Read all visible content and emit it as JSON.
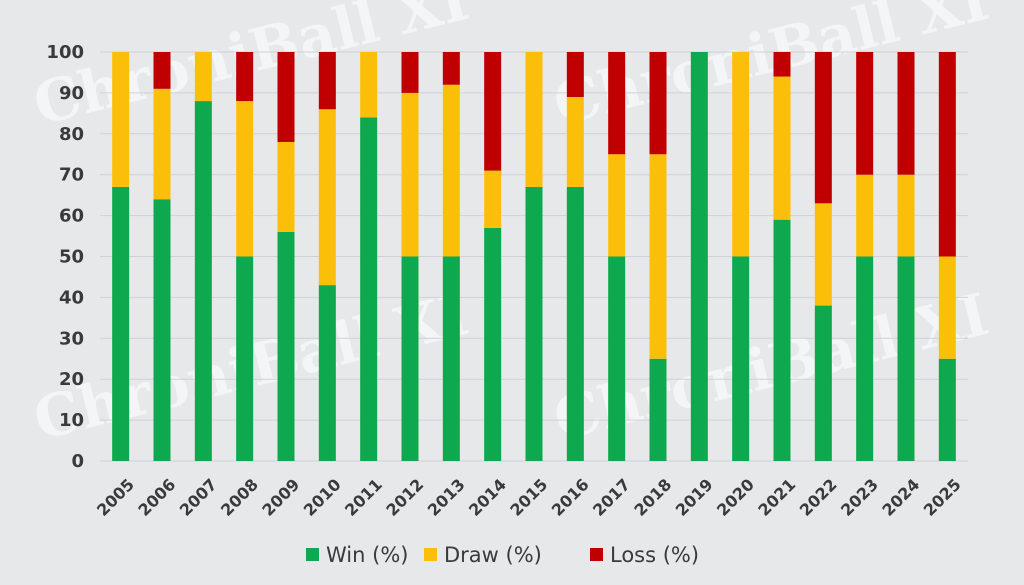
{
  "watermark": "ChroniBall XI",
  "chart_data": {
    "type": "bar",
    "stacked": true,
    "categories": [
      "2005",
      "2006",
      "2007",
      "2008",
      "2009",
      "2010",
      "2011",
      "2012",
      "2013",
      "2014",
      "2015",
      "2016",
      "2017",
      "2018",
      "2019",
      "2020",
      "2021",
      "2022",
      "2023",
      "2024",
      "2025"
    ],
    "series": [
      {
        "name": "Win (%)",
        "color": "#0ea84f",
        "values": [
          67,
          64,
          88,
          50,
          56,
          43,
          84,
          50,
          50,
          57,
          67,
          67,
          50,
          25,
          100,
          50,
          59,
          38,
          50,
          50,
          25
        ]
      },
      {
        "name": "Draw (%)",
        "color": "#fbbf0a",
        "values": [
          33,
          27,
          12,
          38,
          22,
          43,
          16,
          40,
          42,
          14,
          33,
          22,
          25,
          50,
          0,
          50,
          35,
          25,
          20,
          20,
          25
        ]
      },
      {
        "name": "Loss (%)",
        "color": "#c00000",
        "values": [
          0,
          9,
          0,
          12,
          22,
          14,
          0,
          10,
          8,
          29,
          0,
          11,
          25,
          25,
          0,
          0,
          6,
          37,
          30,
          30,
          50
        ]
      }
    ],
    "ylim": [
      0,
      100
    ],
    "yticks": [
      0,
      10,
      20,
      30,
      40,
      50,
      60,
      70,
      80,
      90,
      100
    ],
    "grid": true,
    "legend": "bottom",
    "title": "",
    "xlabel": "",
    "ylabel": ""
  }
}
